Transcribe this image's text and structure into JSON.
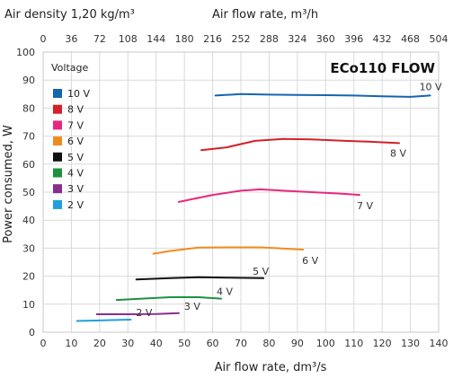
{
  "chart_data": {
    "type": "line",
    "title": "ECo110 FLOW",
    "top_label_left": "Air density 1,20 kg/m³",
    "top_label_right": "Air flow rate, m³/h",
    "xlabel": "Air flow rate, dm³/s",
    "ylabel": "Power consumed, W",
    "xlim": [
      0,
      140
    ],
    "ylim": [
      0,
      100
    ],
    "x_ticks": [
      "0",
      "10",
      "20",
      "30",
      "40",
      "50",
      "60",
      "70",
      "80",
      "90",
      "100",
      "110",
      "120",
      "130",
      "140"
    ],
    "x_tick_values": [
      0,
      10,
      20,
      30,
      40,
      50,
      60,
      70,
      80,
      90,
      100,
      110,
      120,
      130,
      140
    ],
    "y_ticks": [
      "0",
      "10",
      "20",
      "30",
      "40",
      "50",
      "60",
      "70",
      "80",
      "90",
      "100"
    ],
    "y_tick_values": [
      0,
      10,
      20,
      30,
      40,
      50,
      60,
      70,
      80,
      90,
      100
    ],
    "x_top_ticks": [
      "0",
      "36",
      "72",
      "108",
      "144",
      "180",
      "216",
      "252",
      "288",
      "324",
      "360",
      "396",
      "432",
      "468",
      "504"
    ],
    "x_top_tick_values": [
      0,
      36,
      72,
      108,
      144,
      180,
      216,
      252,
      288,
      324,
      360,
      396,
      432,
      468,
      504
    ],
    "grid": true,
    "legend": {
      "title": "Voltage",
      "placement": "top-left"
    },
    "series": [
      {
        "name": "10 V",
        "color": "#1565b0",
        "label": "10 V",
        "x": [
          61,
          70,
          80,
          90,
          100,
          110,
          120,
          130,
          137
        ],
        "y": [
          84.5,
          85,
          84.8,
          84.7,
          84.6,
          84.5,
          84.2,
          84,
          84.5
        ]
      },
      {
        "name": "8 V",
        "color": "#d3202a",
        "label": "8 V",
        "x": [
          56,
          65,
          75,
          85,
          95,
          105,
          115,
          126
        ],
        "y": [
          65,
          66,
          68.3,
          69,
          68.8,
          68.4,
          68,
          67.5
        ]
      },
      {
        "name": "7 V",
        "color": "#e8287f",
        "label": "7 V",
        "x": [
          48,
          60,
          70,
          77,
          85,
          95,
          105,
          112
        ],
        "y": [
          46.5,
          49,
          50.5,
          51,
          50.5,
          50,
          49.5,
          49
        ]
      },
      {
        "name": "6 V",
        "color": "#f08c1e",
        "label": "6 V",
        "x": [
          39,
          45,
          55,
          65,
          77,
          92
        ],
        "y": [
          28,
          29,
          30.2,
          30.3,
          30.3,
          29.5
        ]
      },
      {
        "name": "5 V",
        "color": "#111111",
        "label": "5 V",
        "x": [
          33,
          45,
          55,
          65,
          78
        ],
        "y": [
          18.8,
          19.3,
          19.6,
          19.5,
          19.3
        ]
      },
      {
        "name": "4 V",
        "color": "#1e9140",
        "label": "4 V",
        "x": [
          26,
          35,
          45,
          55,
          63
        ],
        "y": [
          11.5,
          12,
          12.5,
          12.5,
          12
        ]
      },
      {
        "name": "3 V",
        "color": "#8a2d8c",
        "label": "3 V",
        "x": [
          19,
          30,
          40,
          48
        ],
        "y": [
          6.4,
          6.4,
          6.5,
          6.8
        ]
      },
      {
        "name": "2 V",
        "color": "#22a0dc",
        "label": "2 V",
        "x": [
          12,
          20,
          27,
          31
        ],
        "y": [
          4,
          4.2,
          4.4,
          4.5
        ]
      }
    ]
  }
}
